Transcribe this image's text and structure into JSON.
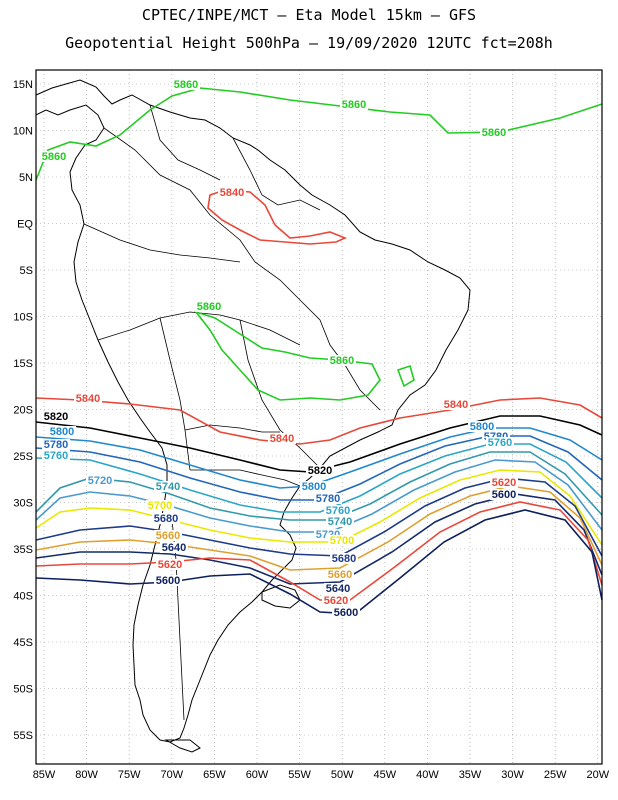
{
  "title_line1": "CPTEC/INPE/MCT –  Eta Model 15km – GFS",
  "title_line2": "Geopotential Height 500hPa – 19/09/2020 12UTC fct=208h",
  "latitude_labels": [
    "15N",
    "10N",
    "5N",
    "EQ",
    "5S",
    "10S",
    "15S",
    "20S",
    "25S",
    "30S",
    "35S",
    "40S",
    "45S",
    "50S",
    "55S"
  ],
  "longitude_labels": [
    "85W",
    "80W",
    "75W",
    "70W",
    "65W",
    "60W",
    "55W",
    "50W",
    "45W",
    "40W",
    "35W",
    "30W",
    "25W",
    "20W"
  ],
  "contours": [
    {
      "value": "5860",
      "color": "#22cc22"
    },
    {
      "value": "5840",
      "color": "#e8483a"
    },
    {
      "value": "5820",
      "color": "#000000"
    },
    {
      "value": "5800",
      "color": "#2288cc"
    },
    {
      "value": "5780",
      "color": "#2266bb"
    },
    {
      "value": "5760",
      "color": "#2ba6c8"
    },
    {
      "value": "5740",
      "color": "#3399aa"
    },
    {
      "value": "5720",
      "color": "#4a9ad0"
    },
    {
      "value": "5700",
      "color": "#e8e800"
    },
    {
      "value": "5680",
      "color": "#1e3a8a"
    },
    {
      "value": "5660",
      "color": "#e0a030"
    },
    {
      "value": "5640",
      "color": "#152a6a"
    },
    {
      "value": "5620",
      "color": "#e8483a"
    },
    {
      "value": "5600",
      "color": "#0d1f5c"
    }
  ],
  "map_border_color": "#000000",
  "grid_color": "#999999"
}
